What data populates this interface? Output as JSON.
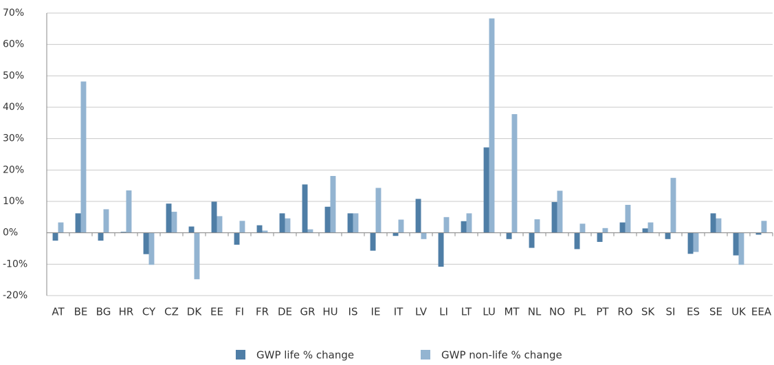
{
  "chart_data": {
    "type": "bar",
    "categories": [
      "AT",
      "BE",
      "BG",
      "HR",
      "CY",
      "CZ",
      "DK",
      "EE",
      "FI",
      "FR",
      "DE",
      "GR",
      "HU",
      "IS",
      "IE",
      "IT",
      "LV",
      "LI",
      "LT",
      "LU",
      "MT",
      "NL",
      "NO",
      "PL",
      "PT",
      "RO",
      "SK",
      "SI",
      "ES",
      "SE",
      "UK",
      "EEA"
    ],
    "series": [
      {
        "name": "GWP life % change",
        "color": "#4f7ea6",
        "values": [
          -2.5,
          6.2,
          -2.5,
          0.3,
          -6.8,
          9.3,
          2.0,
          9.9,
          -3.8,
          2.4,
          6.2,
          15.4,
          8.3,
          6.2,
          -5.7,
          -1.0,
          10.8,
          -10.8,
          3.7,
          27.2,
          -2.0,
          -4.8,
          9.8,
          -5.2,
          -2.9,
          3.3,
          1.4,
          -2.0,
          -6.7,
          6.2,
          -7.2,
          -0.6
        ]
      },
      {
        "name": "GWP non-life % change",
        "color": "#93b4d1",
        "values": [
          3.3,
          48.2,
          7.5,
          13.5,
          -10.2,
          6.7,
          -14.8,
          5.3,
          3.8,
          0.7,
          4.6,
          1.1,
          18.1,
          6.2,
          14.3,
          4.2,
          -2.0,
          5.0,
          6.2,
          68.3,
          37.8,
          4.3,
          13.4,
          2.9,
          1.5,
          8.9,
          3.3,
          17.5,
          -6.1,
          4.6,
          -10.2,
          3.8
        ]
      }
    ],
    "ylim": [
      -20,
      70
    ],
    "yticks": [
      {
        "value": -20,
        "label": "-20%"
      },
      {
        "value": -10,
        "label": "-10%"
      },
      {
        "value": 0,
        "label": "0%"
      },
      {
        "value": 10,
        "label": "10%"
      },
      {
        "value": 20,
        "label": "20%"
      },
      {
        "value": 30,
        "label": "30%"
      },
      {
        "value": 40,
        "label": "40%"
      },
      {
        "value": 50,
        "label": "50%"
      },
      {
        "value": 60,
        "label": "60%"
      },
      {
        "value": 70,
        "label": "70%"
      }
    ],
    "grid": true,
    "legend": "bottom"
  }
}
